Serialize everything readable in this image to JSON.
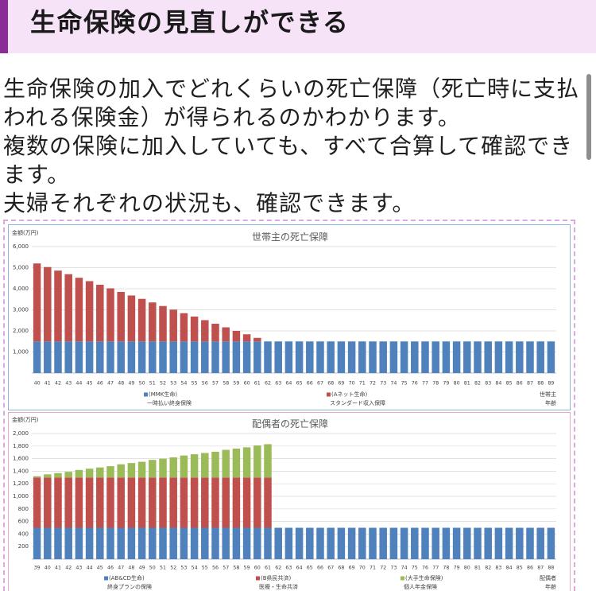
{
  "header": {
    "title": "生命保険の見直しができる"
  },
  "intro": {
    "paragraphs": [
      "生命保険の加入でどれくらいの死亡保障（死亡時に支払われる保険金）が得られるのかわかります。",
      "複数の保険に加入していても、すべて合算して確認できます。",
      "夫婦それぞれの状況も、確認できます。"
    ]
  },
  "colors": {
    "heading_accent": "#8a2d97",
    "heading_background": "#f6e3f8"
  },
  "chart_data": [
    {
      "type": "bar",
      "stacked": true,
      "title": "世帯主の死亡保障",
      "ylabel": "金額(万円)",
      "xlabel": [
        "世帯主",
        "年齢"
      ],
      "ylim": [
        0,
        6000
      ],
      "yticks": [
        "1,000",
        "2,000",
        "3,000",
        "4,000",
        "5,000",
        "6,000"
      ],
      "grid": true,
      "legend": "bottom",
      "categories": [
        40,
        41,
        42,
        43,
        44,
        45,
        46,
        47,
        48,
        49,
        50,
        51,
        52,
        53,
        54,
        55,
        56,
        57,
        58,
        59,
        60,
        61,
        62,
        63,
        64,
        65,
        66,
        67,
        68,
        69,
        70,
        71,
        72,
        73,
        74,
        75,
        76,
        77,
        78,
        79,
        80,
        81,
        82,
        83,
        84,
        85,
        86,
        87,
        88,
        89
      ],
      "series": [
        {
          "name": "(MMK生命)",
          "product": "一時払い終身保険",
          "color": "#4f81bd",
          "values": [
            1500,
            1500,
            1500,
            1500,
            1500,
            1500,
            1500,
            1500,
            1500,
            1500,
            1500,
            1500,
            1500,
            1500,
            1500,
            1500,
            1500,
            1500,
            1500,
            1500,
            1500,
            1500,
            1500,
            1500,
            1500,
            1500,
            1500,
            1500,
            1500,
            1500,
            1500,
            1500,
            1500,
            1500,
            1500,
            1500,
            1500,
            1500,
            1500,
            1500,
            1500,
            1500,
            1500,
            1500,
            1500,
            1500,
            1500,
            1500,
            1500,
            1500
          ]
        },
        {
          "name": "(Aネット生命)",
          "product": "スタンダード収入保障",
          "color": "#c0504d",
          "values": [
            3700,
            3530,
            3360,
            3190,
            3020,
            2860,
            2690,
            2520,
            2350,
            2180,
            2020,
            1850,
            1680,
            1510,
            1340,
            1180,
            1010,
            840,
            670,
            500,
            340,
            170,
            0,
            0,
            0,
            0,
            0,
            0,
            0,
            0,
            0,
            0,
            0,
            0,
            0,
            0,
            0,
            0,
            0,
            0,
            0,
            0,
            0,
            0,
            0,
            0,
            0,
            0,
            0,
            0
          ]
        }
      ]
    },
    {
      "type": "bar",
      "stacked": true,
      "title": "配偶者の死亡保障",
      "ylabel": "金額(万円)",
      "xlabel": [
        "配偶者",
        "年齢"
      ],
      "ylim": [
        0,
        2000
      ],
      "yticks": [
        "200",
        "400",
        "600",
        "800",
        "1,000",
        "1,200",
        "1,400",
        "1,600",
        "1,800",
        "2,000"
      ],
      "grid": true,
      "legend": "bottom",
      "categories": [
        39,
        40,
        41,
        42,
        43,
        44,
        45,
        46,
        47,
        48,
        49,
        50,
        51,
        52,
        53,
        54,
        55,
        56,
        57,
        58,
        59,
        60,
        61,
        62,
        63,
        64,
        65,
        66,
        67,
        68,
        69,
        70,
        71,
        72,
        73,
        74,
        75,
        76,
        77,
        78,
        79,
        80,
        81,
        82,
        83,
        84,
        85,
        86,
        87,
        88
      ],
      "series": [
        {
          "name": "(AB&CD生命)",
          "product": "終身プランの保険",
          "color": "#4f81bd",
          "values": [
            500,
            500,
            500,
            500,
            500,
            500,
            500,
            500,
            500,
            500,
            500,
            500,
            500,
            500,
            500,
            500,
            500,
            500,
            500,
            500,
            500,
            500,
            500,
            500,
            500,
            500,
            500,
            500,
            500,
            500,
            500,
            500,
            500,
            500,
            500,
            500,
            500,
            500,
            500,
            500,
            500,
            500,
            500,
            500,
            500,
            500,
            500,
            500,
            500,
            500
          ]
        },
        {
          "name": "(B県民共済)",
          "product": "医療・生命共済",
          "color": "#c0504d",
          "values": [
            800,
            800,
            800,
            800,
            800,
            800,
            800,
            800,
            800,
            800,
            800,
            800,
            800,
            800,
            800,
            800,
            800,
            800,
            800,
            800,
            800,
            800,
            800,
            0,
            0,
            0,
            0,
            0,
            0,
            0,
            0,
            0,
            0,
            0,
            0,
            0,
            0,
            0,
            0,
            0,
            0,
            0,
            0,
            0,
            0,
            0,
            0,
            0,
            0,
            0
          ]
        },
        {
          "name": "(大手生命保険)",
          "product": "個人年金保険",
          "color": "#9bbb59",
          "values": [
            20,
            50,
            70,
            90,
            120,
            140,
            160,
            180,
            210,
            230,
            250,
            280,
            300,
            320,
            350,
            370,
            390,
            410,
            440,
            460,
            480,
            510,
            530,
            0,
            0,
            0,
            0,
            0,
            0,
            0,
            0,
            0,
            0,
            0,
            0,
            0,
            0,
            0,
            0,
            0,
            0,
            0,
            0,
            0,
            0,
            0,
            0,
            0,
            0,
            0
          ]
        }
      ]
    }
  ]
}
